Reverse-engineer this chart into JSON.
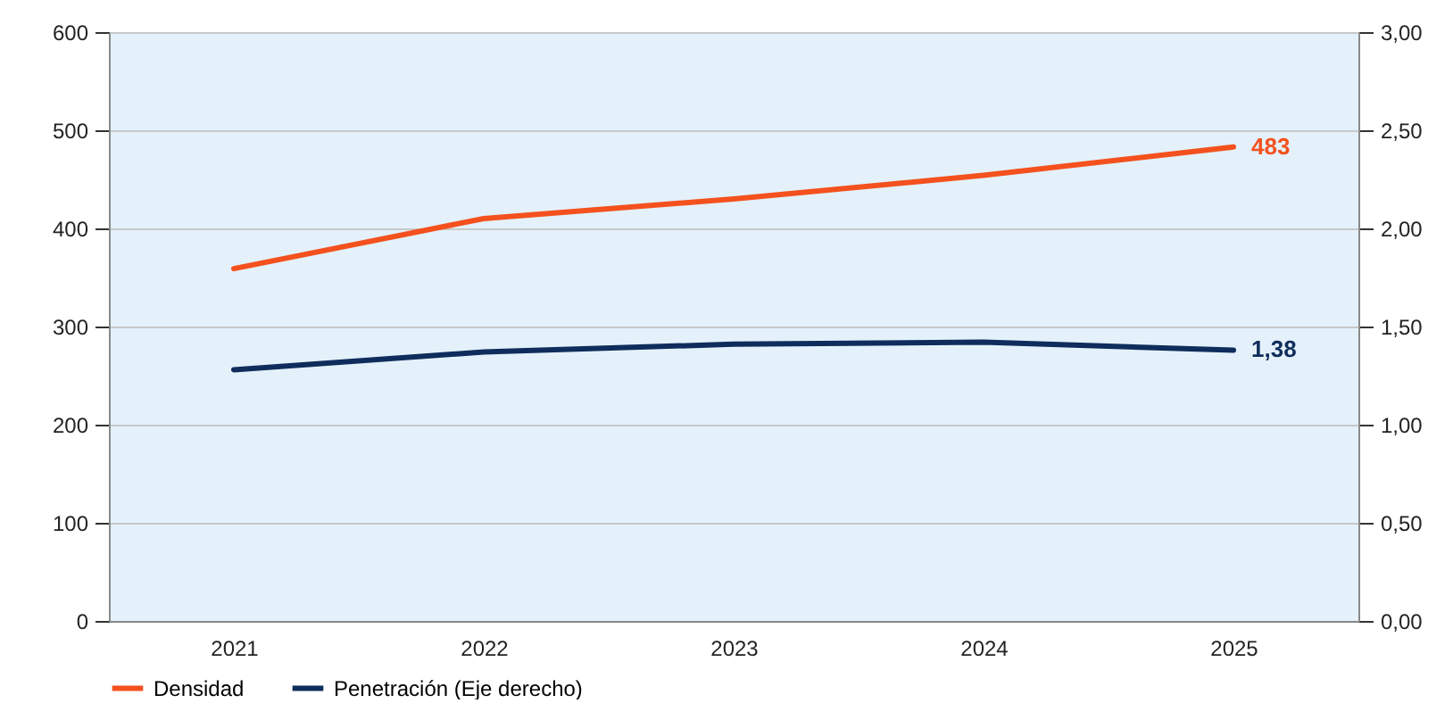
{
  "chart_data": {
    "type": "line",
    "categories": [
      "2021",
      "2022",
      "2023",
      "2024",
      "2025"
    ],
    "series": [
      {
        "name": "Densidad",
        "color": "#f4511e",
        "values": [
          359,
          410,
          430,
          454,
          483
        ],
        "value_labels": [
          null,
          null,
          null,
          null,
          "483"
        ]
      },
      {
        "name": "Penetración (Eje derecho)",
        "color": "#0f2d5c",
        "axis": "y2",
        "values": [
          1.28,
          1.37,
          1.41,
          1.42,
          1.38
        ],
        "value_labels": [
          null,
          null,
          null,
          null,
          "1,38"
        ]
      }
    ],
    "ylim": [
      0,
      600
    ],
    "yticks": [
      0,
      100,
      200,
      300,
      400,
      500,
      600
    ],
    "y2lim": [
      0,
      3
    ],
    "y2ticks": [
      {
        "value": 0,
        "label": "0,00"
      },
      {
        "value": 0.5,
        "label": "0,50"
      },
      {
        "value": 1,
        "label": "1,00"
      },
      {
        "value": 1.5,
        "label": "1,50"
      },
      {
        "value": 2,
        "label": "2,00"
      },
      {
        "value": 2.5,
        "label": "2,50"
      },
      {
        "value": 3,
        "label": "3,00"
      }
    ],
    "grid": "y",
    "legend": "bottom",
    "marker": "none",
    "line_style": "solid"
  }
}
